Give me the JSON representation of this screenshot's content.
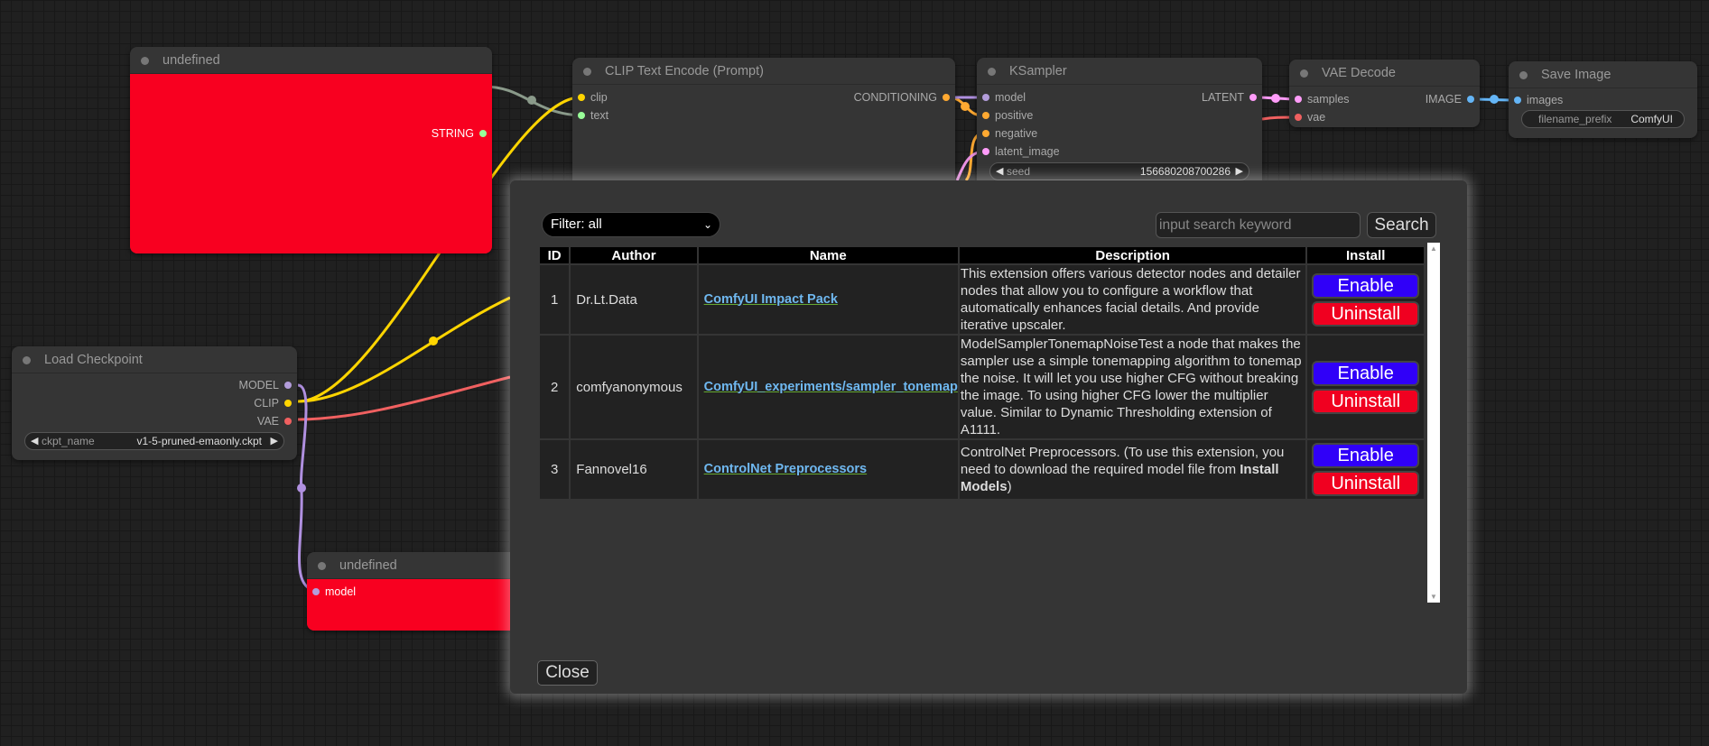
{
  "nodes": {
    "undefined_top": {
      "title": "undefined",
      "output": "STRING"
    },
    "clip": {
      "title": "CLIP Text Encode (Prompt)",
      "inputs": [
        "clip",
        "text"
      ],
      "output": "CONDITIONING"
    },
    "ksampler": {
      "title": "KSampler",
      "inputs": [
        "model",
        "positive",
        "negative",
        "latent_image"
      ],
      "output": "LATENT",
      "seed_label": "seed",
      "seed_value": "156680208700286"
    },
    "vae": {
      "title": "VAE Decode",
      "inputs": [
        "samples",
        "vae"
      ],
      "output": "IMAGE"
    },
    "save": {
      "title": "Save Image",
      "inputs": [
        "images"
      ],
      "widget_label": "filename_prefix",
      "widget_value": "ComfyUI"
    },
    "checkpoint": {
      "title": "Load Checkpoint",
      "outputs": [
        "MODEL",
        "CLIP",
        "VAE"
      ],
      "widget_label": "ckpt_name",
      "widget_value": "v1-5-pruned-emaonly.ckpt"
    },
    "undefined_bottom": {
      "title": "undefined",
      "input": "model"
    }
  },
  "modal": {
    "filter": "Filter: all",
    "search_placeholder": "input search keyword",
    "search_label": "Search",
    "close_label": "Close",
    "columns": [
      "ID",
      "Author",
      "Name",
      "Description",
      "Install"
    ],
    "rows": [
      {
        "id": "1",
        "author": "Dr.Lt.Data",
        "name": "ComfyUI Impact Pack",
        "description": "This extension offers various detector nodes and detailer nodes that allow you to configure a workflow that automatically enhances facial details. And provide iterative upscaler.",
        "enable": "Enable",
        "uninstall": "Uninstall"
      },
      {
        "id": "2",
        "author": "comfyanonymous",
        "name": "ComfyUI_experiments/sampler_tonemap",
        "description": "ModelSamplerTonemapNoiseTest a node that makes the sampler use a simple tonemapping algorithm to tonemap the noise. It will let you use higher CFG without breaking the image. To using higher CFG lower the multiplier value. Similar to Dynamic Thresholding extension of A1111.",
        "enable": "Enable",
        "uninstall": "Uninstall"
      },
      {
        "id": "3",
        "author": "Fannovel16",
        "name": "ControlNet Preprocessors",
        "description": "ControlNet Preprocessors. (To use this extension, you need to download the required model file from ",
        "description_bold": "Install Models",
        "description_end": ")",
        "enable": "Enable",
        "uninstall": "Uninstall"
      }
    ]
  },
  "colors": {
    "node_red": "#f80020",
    "enable": "#3000f8",
    "uninstall": "#f00020",
    "link": "#6fb8f0"
  }
}
